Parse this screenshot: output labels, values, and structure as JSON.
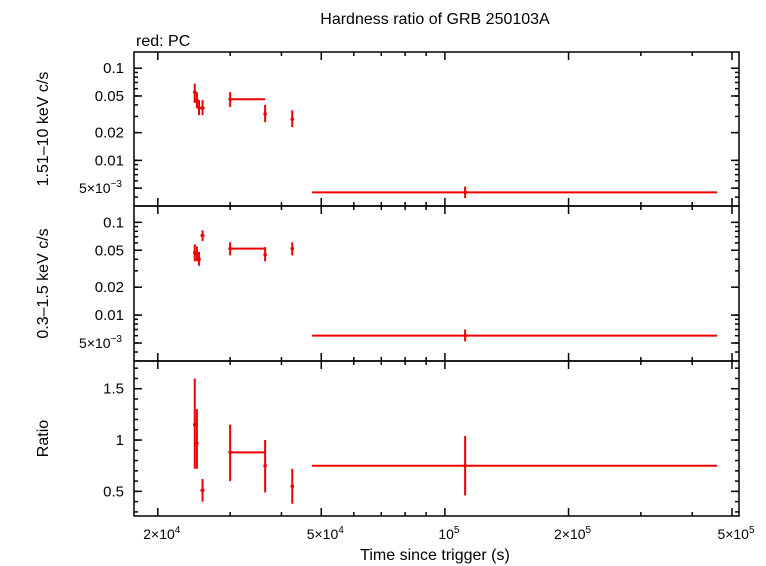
{
  "chart_data": {
    "type": "scatter",
    "title": "Hardness ratio of GRB 250103A",
    "legend": "red: PC",
    "xlabel": "Time since trigger (s)",
    "xscale": "log",
    "xlim": [
      17500,
      520000
    ],
    "x_ticks": [
      {
        "value": 20000,
        "mantissa": "2×10",
        "exp": "4"
      },
      {
        "value": 50000,
        "mantissa": "5×10",
        "exp": "4"
      },
      {
        "value": 100000,
        "mantissa": "10",
        "exp": "5"
      },
      {
        "value": 200000,
        "mantissa": "2×10",
        "exp": "5"
      },
      {
        "value": 500000,
        "mantissa": "5×10",
        "exp": "5"
      }
    ],
    "series_color": "#ee0000",
    "panels": [
      {
        "ylabel": "1.51–10 keV c/s",
        "yscale": "log",
        "ylim": [
          0.0032,
          0.15
        ],
        "y_ticks": [
          {
            "value": 0.1,
            "label": "0.1"
          },
          {
            "value": 0.05,
            "label": "0.05"
          },
          {
            "value": 0.02,
            "label": "0.02"
          },
          {
            "value": 0.01,
            "label": "0.01"
          },
          {
            "value": 0.005,
            "mantissa": "5×10",
            "exp": "−3"
          }
        ],
        "points": [
          {
            "x": 24600,
            "xlo": 24400,
            "xhi": 24800,
            "y": 0.055,
            "ylo": 0.042,
            "yhi": 0.068
          },
          {
            "x": 24900,
            "xlo": 24800,
            "xhi": 25000,
            "y": 0.045,
            "ylo": 0.037,
            "yhi": 0.055
          },
          {
            "x": 25200,
            "xlo": 25000,
            "xhi": 25400,
            "y": 0.037,
            "ylo": 0.031,
            "yhi": 0.045
          },
          {
            "x": 25700,
            "xlo": 25400,
            "xhi": 26000,
            "y": 0.037,
            "ylo": 0.031,
            "yhi": 0.045
          },
          {
            "x": 30000,
            "xlo": 30000,
            "xhi": 36500,
            "y": 0.046,
            "ylo": 0.038,
            "yhi": 0.055
          },
          {
            "x": 36500,
            "xlo": 36300,
            "xhi": 36700,
            "y": 0.032,
            "ylo": 0.026,
            "yhi": 0.04
          },
          {
            "x": 42500,
            "xlo": 42300,
            "xhi": 42700,
            "y": 0.028,
            "ylo": 0.023,
            "yhi": 0.035
          },
          {
            "x": 112000,
            "xlo": 47500,
            "xhi": 460000,
            "y": 0.0045,
            "ylo": 0.0039,
            "yhi": 0.0052
          }
        ]
      },
      {
        "ylabel": "0.3–1.5 keV c/s",
        "yscale": "log",
        "ylim": [
          0.0032,
          0.15
        ],
        "y_ticks": [
          {
            "value": 0.1,
            "label": "0.1"
          },
          {
            "value": 0.05,
            "label": "0.05"
          },
          {
            "value": 0.02,
            "label": "0.02"
          },
          {
            "value": 0.01,
            "label": "0.01"
          },
          {
            "value": 0.005,
            "mantissa": "5×10",
            "exp": "−3"
          }
        ],
        "points": [
          {
            "x": 24600,
            "xlo": 24400,
            "xhi": 24800,
            "y": 0.047,
            "ylo": 0.038,
            "yhi": 0.058
          },
          {
            "x": 24900,
            "xlo": 24800,
            "xhi": 25000,
            "y": 0.046,
            "ylo": 0.038,
            "yhi": 0.055
          },
          {
            "x": 25200,
            "xlo": 25000,
            "xhi": 25400,
            "y": 0.04,
            "ylo": 0.034,
            "yhi": 0.048
          },
          {
            "x": 25700,
            "xlo": 25400,
            "xhi": 26000,
            "y": 0.072,
            "ylo": 0.063,
            "yhi": 0.082
          },
          {
            "x": 30000,
            "xlo": 30000,
            "xhi": 36500,
            "y": 0.052,
            "ylo": 0.044,
            "yhi": 0.061
          },
          {
            "x": 36500,
            "xlo": 36300,
            "xhi": 36700,
            "y": 0.045,
            "ylo": 0.038,
            "yhi": 0.054
          },
          {
            "x": 42500,
            "xlo": 42300,
            "xhi": 42700,
            "y": 0.052,
            "ylo": 0.044,
            "yhi": 0.061
          },
          {
            "x": 112000,
            "xlo": 47500,
            "xhi": 460000,
            "y": 0.006,
            "ylo": 0.0052,
            "yhi": 0.007
          }
        ]
      },
      {
        "ylabel": "Ratio",
        "yscale": "linear",
        "ylim": [
          0.26,
          1.77
        ],
        "y_ticks": [
          {
            "value": 1.5,
            "label": "1.5"
          },
          {
            "value": 1,
            "label": "1"
          },
          {
            "value": 0.5,
            "label": "0.5"
          }
        ],
        "points": [
          {
            "x": 24600,
            "xlo": 24400,
            "xhi": 24800,
            "y": 1.15,
            "ylo": 0.72,
            "yhi": 1.6
          },
          {
            "x": 24900,
            "xlo": 24800,
            "xhi": 25000,
            "y": 0.97,
            "ylo": 0.72,
            "yhi": 1.3
          },
          {
            "x": 25700,
            "xlo": 25400,
            "xhi": 26000,
            "y": 0.51,
            "ylo": 0.4,
            "yhi": 0.62
          },
          {
            "x": 30000,
            "xlo": 30000,
            "xhi": 36500,
            "y": 0.88,
            "ylo": 0.6,
            "yhi": 1.15
          },
          {
            "x": 36500,
            "xlo": 36300,
            "xhi": 36700,
            "y": 0.75,
            "ylo": 0.49,
            "yhi": 1.0
          },
          {
            "x": 42500,
            "xlo": 42300,
            "xhi": 42700,
            "y": 0.55,
            "ylo": 0.38,
            "yhi": 0.72
          },
          {
            "x": 112000,
            "xlo": 47500,
            "xhi": 460000,
            "y": 0.75,
            "ylo": 0.46,
            "yhi": 1.04
          }
        ]
      }
    ]
  }
}
